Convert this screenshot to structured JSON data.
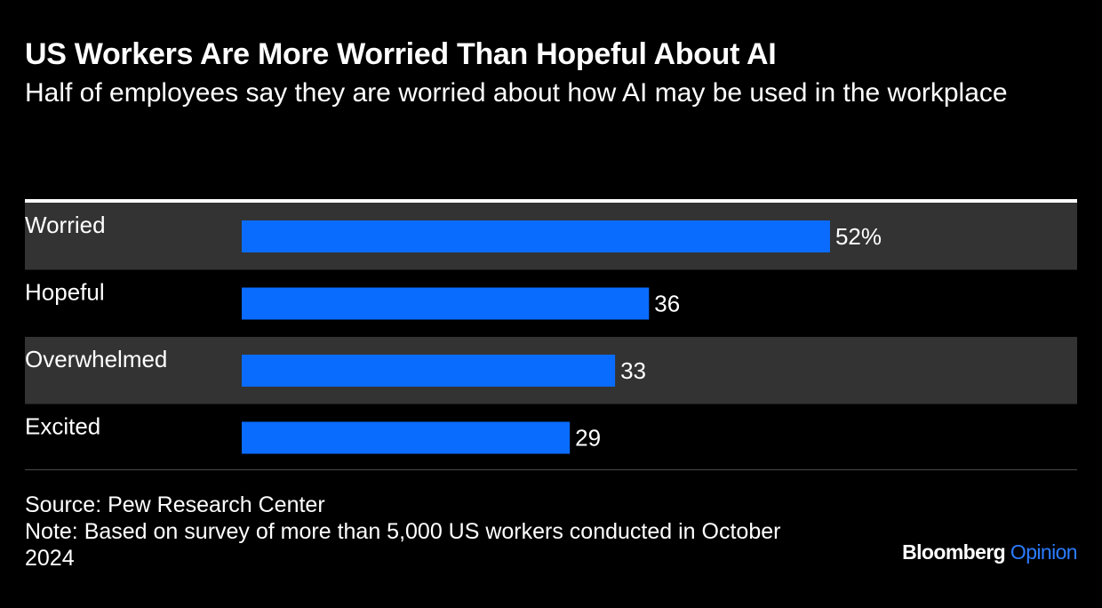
{
  "header": {
    "title": "US Workers Are More Worried Than Hopeful About AI",
    "subtitle": "Half of employees say they are worried about how AI may be used in the workplace"
  },
  "chart_data": {
    "type": "bar",
    "orientation": "horizontal",
    "categories": [
      "Worried",
      "Hopeful",
      "Overwhelmed",
      "Excited"
    ],
    "values": [
      52,
      36,
      33,
      29
    ],
    "value_labels": [
      "52%",
      "36",
      "33",
      "29"
    ],
    "unit": "%",
    "xlim": [
      0,
      100
    ],
    "title": "US Workers Are More Worried Than Hopeful About AI",
    "subtitle": "Half of employees say they are worried about how AI may be used in the workplace",
    "xlabel": "",
    "ylabel": "",
    "grid": false,
    "legend": "none"
  },
  "footer": {
    "source": "Source: Pew Research Center",
    "note": "Note: Based on survey of more than 5,000 US workers conducted in October 2024",
    "brand_main": "Bloomberg",
    "brand_accent": "Opinion"
  },
  "colors": {
    "background": "#000000",
    "bar": "#0a6cff",
    "row_band": "#333333",
    "text": "#ffffff",
    "brand_accent": "#2b7cff"
  }
}
